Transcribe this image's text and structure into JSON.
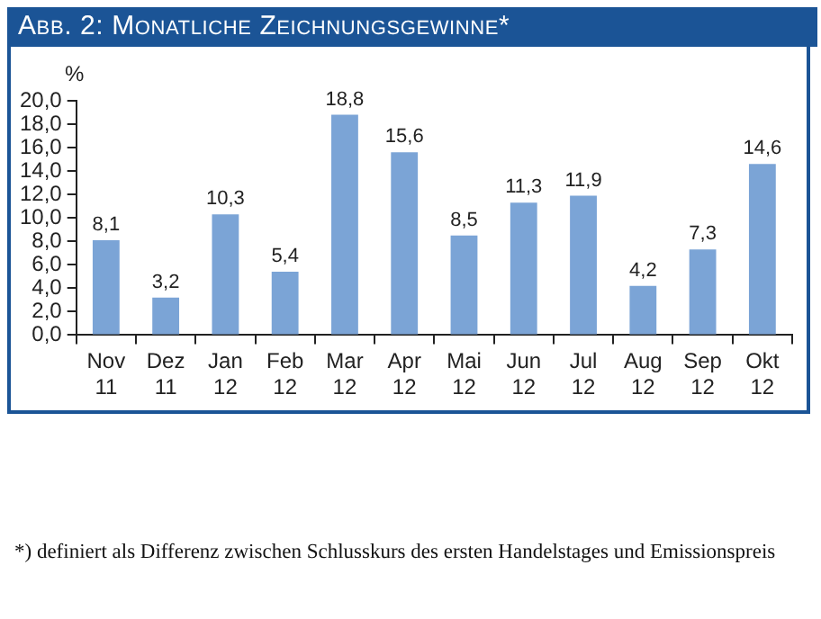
{
  "chart_data": {
    "type": "bar",
    "title": "Abb. 2: Monatliche Zeichnungsgewinne*",
    "ylabel": "%",
    "categories": [
      "Nov 11",
      "Dez 11",
      "Jan 12",
      "Feb 12",
      "Mar 12",
      "Apr 12",
      "Mai 12",
      "Jun 12",
      "Jul 12",
      "Aug 12",
      "Sep 12",
      "Okt 12"
    ],
    "values": [
      8.1,
      3.2,
      10.3,
      5.4,
      18.8,
      15.6,
      8.5,
      11.3,
      11.9,
      4.2,
      7.3,
      14.6
    ],
    "value_labels": [
      "8,1",
      "3,2",
      "10,3",
      "5,4",
      "18,8",
      "15,6",
      "8,5",
      "11,3",
      "11,9",
      "4,2",
      "7,3",
      "14,6"
    ],
    "color": "#7ba4d6",
    "ylim": [
      0,
      20
    ],
    "yticks": [
      {
        "value": 0,
        "label": "0,0"
      },
      {
        "value": 2,
        "label": "2,0"
      },
      {
        "value": 4,
        "label": "4,0"
      },
      {
        "value": 6,
        "label": "6,0"
      },
      {
        "value": 8,
        "label": "8,0"
      },
      {
        "value": 10,
        "label": "10,0"
      },
      {
        "value": 12,
        "label": "12,0"
      },
      {
        "value": 14,
        "label": "14,0"
      },
      {
        "value": 16,
        "label": "16,0"
      },
      {
        "value": 18,
        "label": "18,0"
      },
      {
        "value": 20,
        "label": "20,0"
      }
    ],
    "grid": false,
    "legend": false,
    "annotations": [
      "*) definiert als Differenz zwischen Schlusskurs des ersten Handelstages und Emissionspreis"
    ]
  }
}
